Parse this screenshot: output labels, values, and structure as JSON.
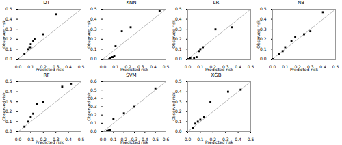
{
  "chart_data": [
    {
      "type": "scatter",
      "title": "DT",
      "xlabel": "Predicted risk",
      "ylabel": "Observed risk",
      "xlim": [
        0.0,
        0.5
      ],
      "ylim": [
        0.0,
        0.5
      ],
      "xticks": [
        {
          "value": 0.0,
          "label": "0.0"
        },
        0.1,
        0.2,
        0.3,
        0.4,
        0.5
      ],
      "yticks": [
        {
          "value": 0.0,
          "label": "0.0"
        },
        0.1,
        0.2,
        0.3,
        0.4,
        0.5
      ],
      "series": [
        {
          "type": "line",
          "color": "#aaaaaa",
          "x": [
            0,
            0.5
          ],
          "values": [
            0,
            0.5
          ]
        },
        {
          "type": "scatter",
          "color": "black",
          "marker": "square",
          "x": [
            0.0,
            0.05,
            0.08,
            0.09,
            0.1,
            0.1,
            0.12,
            0.13,
            0.2,
            0.3
          ],
          "values": [
            0.0,
            0.05,
            0.1,
            0.12,
            0.12,
            0.15,
            0.18,
            0.2,
            0.25,
            0.45
          ]
        }
      ]
    },
    {
      "type": "scatter",
      "title": "KNN",
      "xlabel": "Predicted risk",
      "ylabel": "Observed risk",
      "xlim": [
        0.0,
        0.5
      ],
      "ylim": [
        0.0,
        0.5
      ],
      "xticks": [
        {
          "value": 0.0,
          "label": "0.0"
        },
        0.1,
        0.2,
        0.3,
        0.4,
        0.5
      ],
      "yticks": [
        {
          "value": 0.0,
          "label": "0.0"
        },
        0.1,
        0.2,
        0.3,
        0.4,
        0.5
      ],
      "series": [
        {
          "type": "line",
          "color": "#aaaaaa",
          "x": [
            0,
            0.5
          ],
          "values": [
            0,
            0.5
          ]
        },
        {
          "type": "scatter",
          "color": "black",
          "marker": "square",
          "x": [
            0.05,
            0.06,
            0.07,
            0.08,
            0.09,
            0.1,
            0.15,
            0.22,
            0.45
          ],
          "values": [
            0.0,
            0.01,
            0.02,
            0.02,
            0.03,
            0.13,
            0.28,
            0.32,
            0.48
          ]
        }
      ]
    },
    {
      "type": "scatter",
      "title": "LR",
      "xlabel": "Predicted risk",
      "ylabel": "Observed risk",
      "xlim": [
        0.0,
        0.5
      ],
      "ylim": [
        0.0,
        0.5
      ],
      "xticks": [
        {
          "value": 0.0,
          "label": "0.0"
        },
        0.1,
        0.2,
        0.3,
        0.4,
        0.5
      ],
      "yticks": [
        {
          "value": 0.0,
          "label": "0.0"
        },
        0.1,
        0.2,
        0.3,
        0.4,
        0.5
      ],
      "series": [
        {
          "type": "line",
          "color": "#aaaaaa",
          "x": [
            0,
            0.5
          ],
          "values": [
            0,
            0.5
          ]
        },
        {
          "type": "scatter",
          "color": "black",
          "marker": "square",
          "x": [
            0.0,
            0.02,
            0.05,
            0.07,
            0.09,
            0.1,
            0.12,
            0.22,
            0.35
          ],
          "values": [
            0.0,
            0.01,
            0.01,
            0.02,
            0.08,
            0.1,
            0.12,
            0.3,
            0.32
          ]
        }
      ]
    },
    {
      "type": "scatter",
      "title": "NB",
      "xlabel": "Predicted risk",
      "ylabel": "Observed risk",
      "xlim": [
        0.0,
        0.5
      ],
      "ylim": [
        0.0,
        0.5
      ],
      "xticks": [
        {
          "value": 0.0,
          "label": "0.0"
        },
        0.1,
        0.2,
        0.3,
        0.4,
        0.5
      ],
      "yticks": [
        {
          "value": 0.0,
          "label": "0.0"
        },
        0.1,
        0.2,
        0.3,
        0.4,
        0.5
      ],
      "series": [
        {
          "type": "line",
          "color": "#aaaaaa",
          "x": [
            0,
            0.5
          ],
          "values": [
            0,
            0.5
          ]
        },
        {
          "type": "scatter",
          "color": "black",
          "marker": "square",
          "x": [
            0.0,
            0.05,
            0.08,
            0.1,
            0.15,
            0.18,
            0.25,
            0.3,
            0.4
          ],
          "values": [
            0.0,
            0.05,
            0.08,
            0.12,
            0.18,
            0.22,
            0.25,
            0.28,
            0.47
          ]
        }
      ]
    },
    {
      "type": "scatter",
      "title": "RF",
      "xlabel": "Predicted risk",
      "ylabel": "Observed risk",
      "xlim": [
        0.0,
        0.5
      ],
      "ylim": [
        0.0,
        0.5
      ],
      "xticks": [
        {
          "value": 0.0,
          "label": "0.0"
        },
        0.1,
        0.2,
        0.3,
        0.4,
        0.5
      ],
      "yticks": [
        {
          "value": 0.0,
          "label": "0.0"
        },
        0.1,
        0.2,
        0.3,
        0.4,
        0.5
      ],
      "series": [
        {
          "type": "line",
          "color": "#aaaaaa",
          "x": [
            0,
            0.5
          ],
          "values": [
            0,
            0.5
          ]
        },
        {
          "type": "scatter",
          "color": "black",
          "marker": "square",
          "x": [
            0.0,
            0.05,
            0.08,
            0.1,
            0.12,
            0.15,
            0.2,
            0.35,
            0.42
          ],
          "values": [
            0.0,
            0.05,
            0.1,
            0.15,
            0.18,
            0.28,
            0.3,
            0.45,
            0.48
          ]
        }
      ]
    },
    {
      "type": "scatter",
      "title": "SVM",
      "xlabel": "Predicted risk",
      "ylabel": "Observed risk",
      "xlim": [
        0.0,
        0.6
      ],
      "ylim": [
        0.0,
        0.6
      ],
      "xticks": [
        {
          "value": 0.0,
          "label": "0.0"
        },
        0.1,
        0.2,
        0.3,
        0.4,
        0.5,
        0.6
      ],
      "yticks": [
        {
          "value": 0.0,
          "label": "0.0"
        },
        0.1,
        0.2,
        0.3,
        0.4,
        0.5,
        0.6
      ],
      "series": [
        {
          "type": "line",
          "color": "#aaaaaa",
          "x": [
            0,
            0.6
          ],
          "values": [
            0,
            0.6
          ]
        },
        {
          "type": "scatter",
          "color": "black",
          "marker": "square",
          "x": [
            0.03,
            0.04,
            0.05,
            0.06,
            0.07,
            0.1,
            0.2,
            0.3,
            0.5
          ],
          "values": [
            0.0,
            0.01,
            0.01,
            0.02,
            0.02,
            0.15,
            0.22,
            0.3,
            0.52
          ]
        }
      ]
    },
    {
      "type": "scatter",
      "title": "XGB",
      "xlabel": "Predicted risk",
      "ylabel": "Observed risk",
      "xlim": [
        0.0,
        0.5
      ],
      "ylim": [
        0.0,
        0.5
      ],
      "xticks": [
        {
          "value": 0.0,
          "label": "0.0"
        },
        0.1,
        0.2,
        0.3,
        0.4,
        0.5
      ],
      "yticks": [
        {
          "value": 0.0,
          "label": "0.0"
        },
        0.1,
        0.2,
        0.3,
        0.4,
        0.5
      ],
      "series": [
        {
          "type": "line",
          "color": "#aaaaaa",
          "x": [
            0,
            0.5
          ],
          "values": [
            0,
            0.5
          ]
        },
        {
          "type": "scatter",
          "color": "black",
          "marker": "square",
          "x": [
            0.0,
            0.04,
            0.06,
            0.08,
            0.1,
            0.13,
            0.18,
            0.32,
            0.42
          ],
          "values": [
            0.0,
            0.04,
            0.08,
            0.1,
            0.12,
            0.15,
            0.3,
            0.4,
            0.42
          ]
        }
      ]
    }
  ]
}
